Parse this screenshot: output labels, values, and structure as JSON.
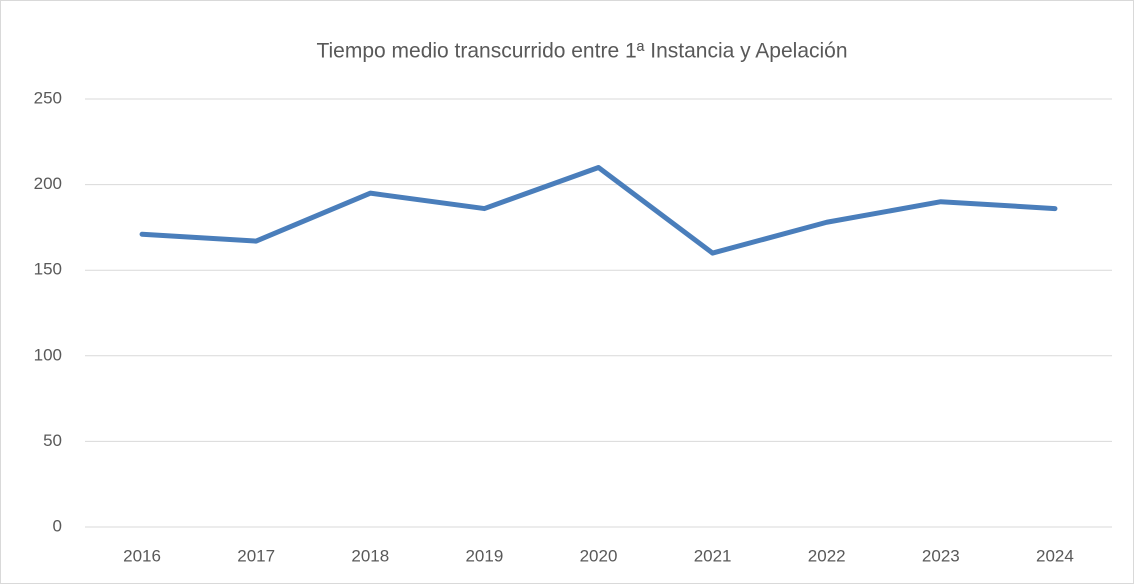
{
  "chart_data": {
    "type": "line",
    "title": "Tiempo medio transcurrido entre 1ª Instancia y Apelación",
    "categories": [
      "2016",
      "2017",
      "2018",
      "2019",
      "2020",
      "2021",
      "2022",
      "2023",
      "2024"
    ],
    "series": [
      {
        "color": "#4a7ebb",
        "values": [
          171,
          167,
          195,
          186,
          210,
          160,
          178,
          190,
          186
        ]
      }
    ],
    "ylim": [
      0,
      250
    ],
    "yticks": [
      0,
      50,
      100,
      150,
      200,
      250
    ],
    "grid": true
  }
}
